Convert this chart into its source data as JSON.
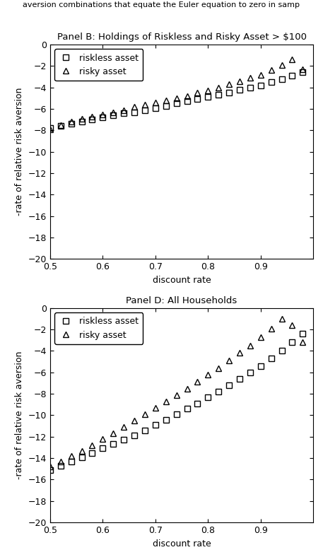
{
  "panel_b_title": "Panel B: Holdings of Riskless and Risky Asset > $100",
  "panel_d_title": "Panel D: All Households",
  "xlabel": "discount rate",
  "ylabel": "-rate of relative risk aversion",
  "ylim": [
    -20,
    0
  ],
  "yticks": [
    0,
    -2,
    -4,
    -6,
    -8,
    -10,
    -12,
    -14,
    -16,
    -18,
    -20
  ],
  "xlim": [
    0.5,
    1.0
  ],
  "xticks": [
    0.5,
    0.6,
    0.7,
    0.8,
    0.9
  ],
  "legend_labels": [
    "riskless asset",
    "risky asset"
  ],
  "panel_b": {
    "riskless_x": [
      0.5,
      0.52,
      0.54,
      0.56,
      0.58,
      0.6,
      0.62,
      0.64,
      0.66,
      0.68,
      0.7,
      0.72,
      0.74,
      0.76,
      0.78,
      0.8,
      0.82,
      0.84,
      0.86,
      0.88,
      0.9,
      0.92,
      0.94,
      0.96,
      0.98
    ],
    "riskless_y": [
      -7.8,
      -7.6,
      -7.4,
      -7.2,
      -7.0,
      -6.8,
      -6.6,
      -6.4,
      -6.3,
      -6.1,
      -5.9,
      -5.7,
      -5.5,
      -5.3,
      -5.1,
      -4.9,
      -4.7,
      -4.5,
      -4.2,
      -4.0,
      -3.8,
      -3.5,
      -3.2,
      -2.9,
      -2.6
    ],
    "risky_x": [
      0.5,
      0.52,
      0.54,
      0.56,
      0.58,
      0.6,
      0.62,
      0.64,
      0.66,
      0.68,
      0.7,
      0.72,
      0.74,
      0.76,
      0.78,
      0.8,
      0.82,
      0.84,
      0.86,
      0.88,
      0.9,
      0.92,
      0.94,
      0.96,
      0.98
    ],
    "risky_y": [
      -7.9,
      -7.5,
      -7.2,
      -6.9,
      -6.7,
      -6.5,
      -6.3,
      -6.1,
      -5.8,
      -5.6,
      -5.4,
      -5.2,
      -5.0,
      -4.8,
      -4.5,
      -4.3,
      -4.0,
      -3.7,
      -3.4,
      -3.1,
      -2.8,
      -2.4,
      -1.9,
      -1.4,
      -2.3
    ]
  },
  "panel_d": {
    "riskless_x": [
      0.5,
      0.52,
      0.54,
      0.56,
      0.58,
      0.6,
      0.62,
      0.64,
      0.66,
      0.68,
      0.7,
      0.72,
      0.74,
      0.76,
      0.78,
      0.8,
      0.82,
      0.84,
      0.86,
      0.88,
      0.9,
      0.92,
      0.94,
      0.96,
      0.98
    ],
    "riskless_y": [
      -15.1,
      -14.7,
      -14.3,
      -13.9,
      -13.5,
      -13.1,
      -12.7,
      -12.3,
      -11.9,
      -11.4,
      -10.9,
      -10.4,
      -9.9,
      -9.4,
      -8.9,
      -8.3,
      -7.8,
      -7.2,
      -6.6,
      -6.0,
      -5.4,
      -4.7,
      -4.0,
      -3.2,
      -2.4
    ],
    "risky_x": [
      0.5,
      0.52,
      0.54,
      0.56,
      0.58,
      0.6,
      0.62,
      0.64,
      0.66,
      0.68,
      0.7,
      0.72,
      0.74,
      0.76,
      0.78,
      0.8,
      0.82,
      0.84,
      0.86,
      0.88,
      0.9,
      0.92,
      0.94,
      0.96,
      0.98
    ],
    "risky_y": [
      -14.8,
      -14.3,
      -13.8,
      -13.3,
      -12.8,
      -12.2,
      -11.7,
      -11.1,
      -10.5,
      -9.9,
      -9.3,
      -8.7,
      -8.1,
      -7.5,
      -6.9,
      -6.2,
      -5.6,
      -4.9,
      -4.2,
      -3.5,
      -2.7,
      -1.9,
      -1.0,
      -1.6,
      -3.2
    ]
  },
  "bg_color": "#ffffff",
  "marker_color": "#000000",
  "marker_size": 6,
  "fontsize": 9,
  "title_fontsize": 9.5
}
